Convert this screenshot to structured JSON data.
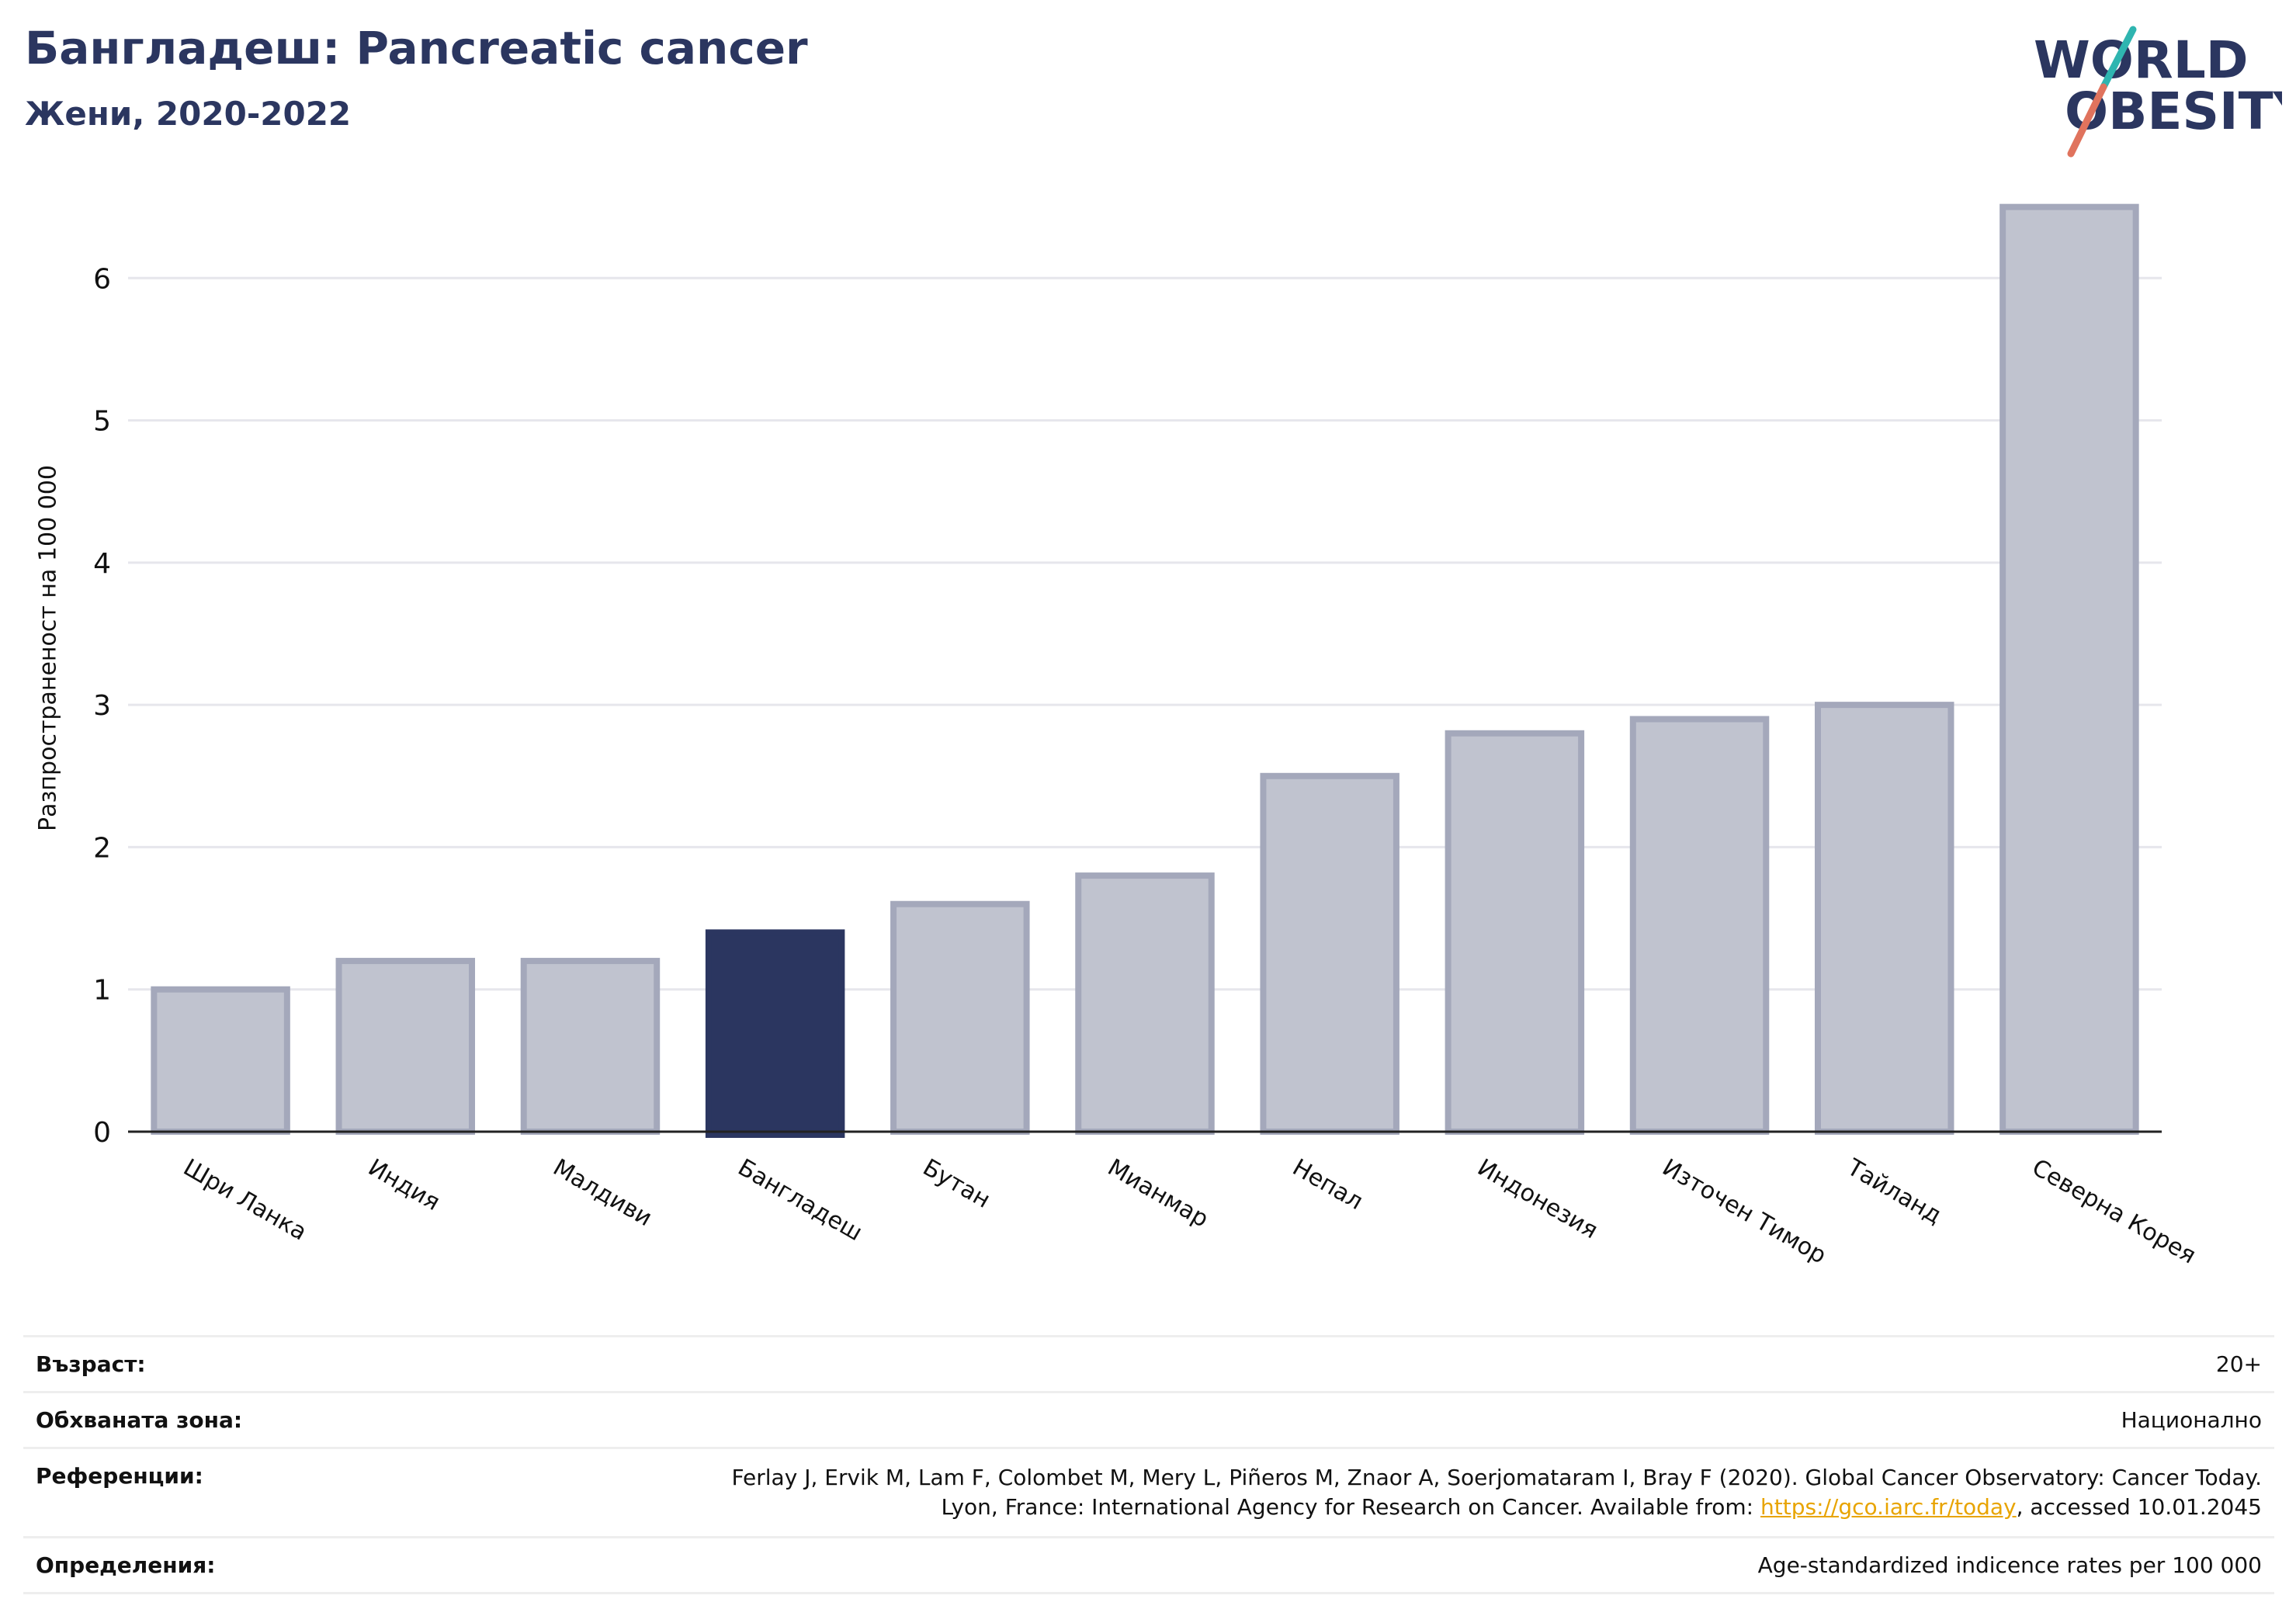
{
  "header": {
    "title": "Бангладеш: Pancreatic cancer",
    "subtitle": "Жени, 2020-2022"
  },
  "logo": {
    "line1": "WORLD",
    "line2": "OBESITY",
    "icon": "world-obesity-logo"
  },
  "colors": {
    "bar": "#c0c3cf",
    "bar_border": "#a4a8bb",
    "highlight": "#2b3660",
    "title": "#2b3660",
    "grid": "#e6e6ec"
  },
  "chart_data": {
    "type": "bar",
    "categories": [
      "Шри Ланка",
      "Индия",
      "Малдиви",
      "Бангладеш",
      "Бутан",
      "Мианмар",
      "Непал",
      "Индонезия",
      "Източен Тимор",
      "Тайланд",
      "Северна Корея"
    ],
    "values": [
      1.0,
      1.2,
      1.2,
      1.4,
      1.6,
      1.8,
      2.5,
      2.8,
      2.9,
      3.0,
      6.5
    ],
    "highlight": "Бангладеш",
    "ylabel": "Разпространеност  на 100 000",
    "yticks": [
      0,
      1,
      2,
      3,
      4,
      5,
      6
    ],
    "ylim": [
      0,
      6.7
    ],
    "grid": true
  },
  "info": {
    "age_label": "Възраст:",
    "age_value": "20+",
    "zone_label": "Обхваната зона:",
    "zone_value": "Национално",
    "ref_label": "Референции:",
    "ref_line1": "Ferlay J, Ervik M, Lam F, Colombet M, Mery L, Piñeros M, Znaor A, Soerjomataram I, Bray F (2020). Global Cancer Observatory: Cancer Today.",
    "ref_line2_pre": "Lyon, France: International Agency for Research on Cancer. Available from: ",
    "ref_link": "https://gco.iarc.fr/today",
    "ref_line2_post": ", accessed 10.01.2045",
    "def_label": "Определения:",
    "def_value": "Age-standardized indicence rates per 100 000"
  }
}
